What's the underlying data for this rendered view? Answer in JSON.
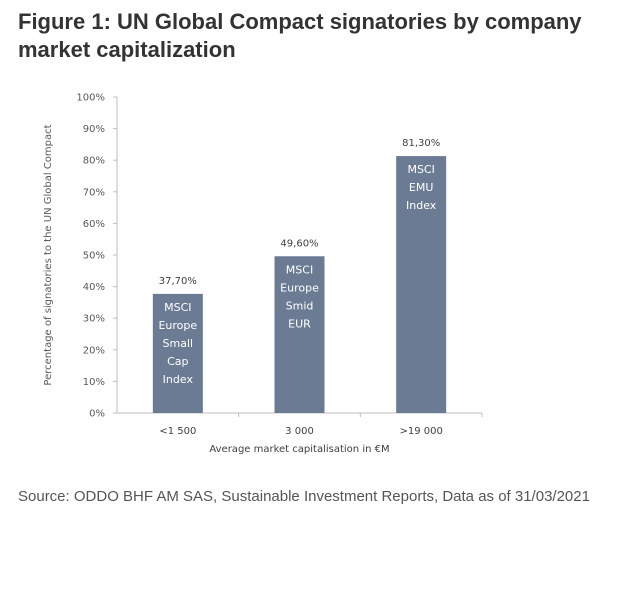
{
  "title": "Figure 1: UN Global Compact signatories by company market capitalization",
  "source": "Source: ODDO BHF AM SAS, Sustainable Investment Reports, Data as of 31/03/2021",
  "chart_data": {
    "type": "bar",
    "categories": [
      "<1 500",
      "3 000",
      ">19 000"
    ],
    "values": [
      37.7,
      49.6,
      81.3
    ],
    "data_labels": [
      "37,70%",
      "49,60%",
      "81,30%"
    ],
    "bar_labels": [
      [
        "MSCI",
        "Europe",
        "Small",
        "Cap",
        "Index"
      ],
      [
        "MSCI",
        "Europe",
        "Smid",
        "EUR"
      ],
      [
        "MSCI",
        "EMU",
        "Index"
      ]
    ],
    "xlabel": "Average market capitalisation in €M",
    "ylabel": "Percentage of signatories to the UN Global Compact",
    "ylim": [
      0,
      100
    ],
    "yticks": [
      "0%",
      "10%",
      "20%",
      "30%",
      "40%",
      "50%",
      "60%",
      "70%",
      "80%",
      "90%",
      "100%"
    ],
    "grid": false,
    "bar_color": "#6b7b94"
  }
}
